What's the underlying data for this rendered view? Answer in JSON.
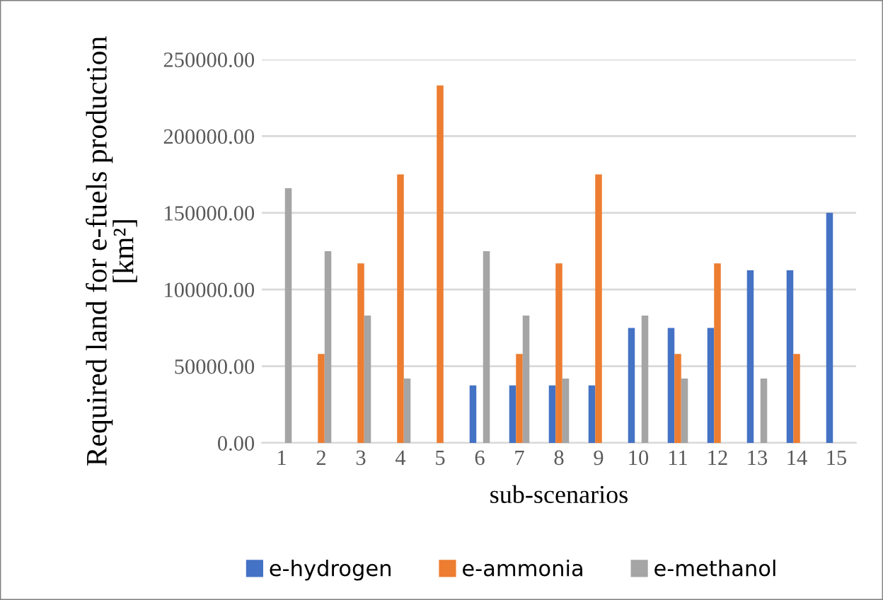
{
  "chart_data": {
    "type": "bar",
    "xlabel": "sub-scenarios",
    "ylabel": "Required land for e-fuels production\n[km²]",
    "categories": [
      "1",
      "2",
      "3",
      "4",
      "5",
      "6",
      "7",
      "8",
      "9",
      "10",
      "11",
      "12",
      "13",
      "14",
      "15"
    ],
    "series": [
      {
        "name": "e-hydrogen",
        "color": "#4472c4",
        "values": [
          null,
          null,
          null,
          null,
          null,
          37500,
          37500,
          37500,
          37500,
          75000,
          75000,
          75000,
          112500,
          112500,
          150000
        ]
      },
      {
        "name": "e-ammonia",
        "color": "#ed7d31",
        "values": [
          null,
          58000,
          117000,
          175000,
          233000,
          null,
          58000,
          117000,
          175000,
          null,
          58000,
          117000,
          null,
          58000,
          null
        ]
      },
      {
        "name": "e-methanol",
        "color": "#a5a5a5",
        "values": [
          166000,
          125000,
          83000,
          42000,
          null,
          125000,
          83000,
          42000,
          null,
          83000,
          42000,
          null,
          42000,
          null,
          null
        ]
      }
    ],
    "ylim": [
      0,
      250000
    ],
    "yticks": [
      {
        "value": 0,
        "label": "0.00"
      },
      {
        "value": 50000,
        "label": "50000.00"
      },
      {
        "value": 100000,
        "label": "100000.00"
      },
      {
        "value": 150000,
        "label": "150000.00"
      },
      {
        "value": 200000,
        "label": "200000.00"
      },
      {
        "value": 250000,
        "label": "250000.00"
      }
    ],
    "grid": "y",
    "legend": "bottom"
  }
}
